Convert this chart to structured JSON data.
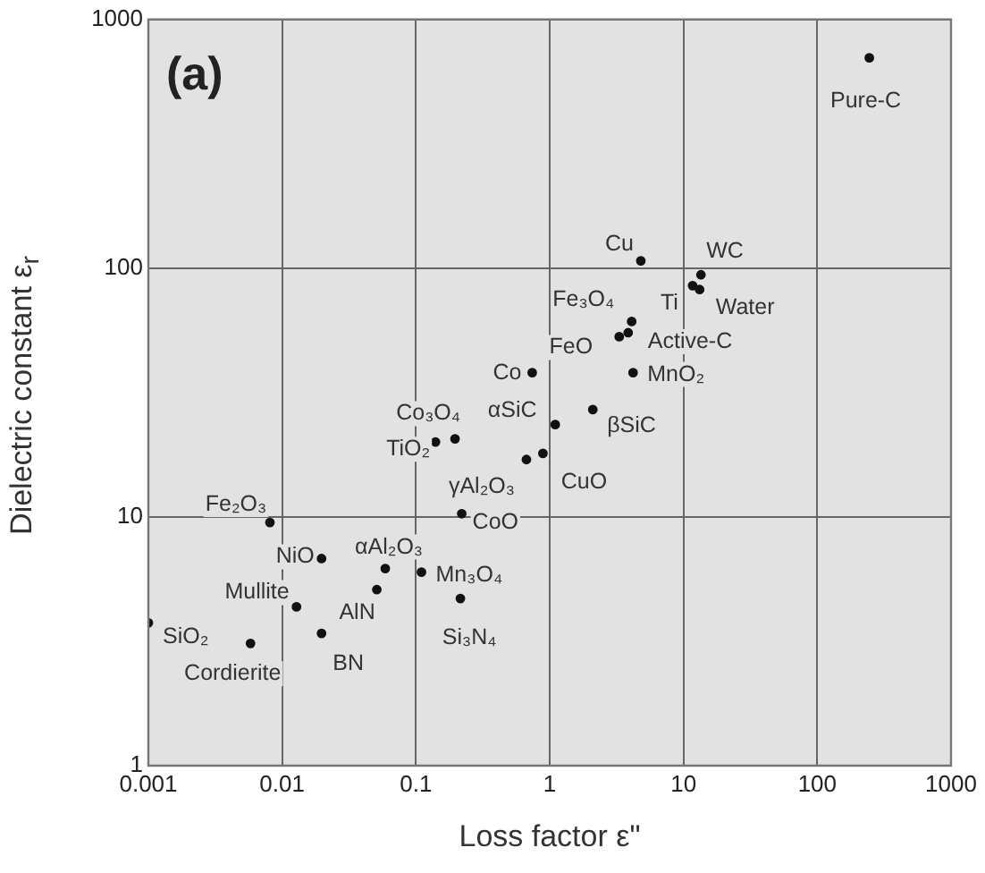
{
  "chart_data": {
    "type": "scatter",
    "xlabel": "Loss factor ε\"",
    "ylabel": "Dielectric constant ε$_{r}$",
    "log": "xy",
    "grid": true,
    "legend": false,
    "marker": "circle",
    "xlim": [
      0.001,
      1000
    ],
    "ylim": [
      1,
      1000
    ],
    "xticks": [
      0.001,
      0.01,
      0.1,
      1,
      10,
      100,
      1000
    ],
    "yticks": [
      1,
      10,
      100,
      1000
    ],
    "series": [
      {
        "color": "#111111",
        "x": [
          245,
          4.8,
          13.5,
          11.7,
          13.2,
          4.1,
          3.86,
          3.31,
          4.2,
          2.1,
          0.74,
          1.1,
          0.89,
          0.67,
          0.14,
          0.196,
          0.22,
          0.0081,
          0.0197,
          0.059,
          0.11,
          0.051,
          0.215,
          0.0128,
          0.001,
          0.0197,
          0.0058
        ],
        "values": [
          700,
          107,
          94,
          85,
          82,
          61,
          55,
          53,
          38,
          27,
          38,
          23.5,
          18,
          17,
          20,
          20.6,
          10.3,
          9.5,
          6.8,
          6.2,
          6.0,
          5.1,
          4.7,
          4.35,
          3.75,
          3.4,
          3.1
        ]
      }
    ],
    "annotations": [
      "(a)",
      {
        "text": "Pure-C",
        "x": 245,
        "y": 700
      },
      {
        "text": "Cu",
        "x": 4.8,
        "y": 107
      },
      {
        "text": "WC",
        "x": 13.5,
        "y": 94
      },
      {
        "text": "Ti",
        "x": 11.7,
        "y": 85
      },
      {
        "text": "Water",
        "x": 13.2,
        "y": 82
      },
      {
        "text": "Fe₃O₄",
        "x": 4.1,
        "y": 61
      },
      {
        "text": "Active-C",
        "x": 3.86,
        "y": 55
      },
      {
        "text": "FeO",
        "x": 3.31,
        "y": 53
      },
      {
        "text": "MnO₂",
        "x": 4.2,
        "y": 38
      },
      {
        "text": "βSiC",
        "x": 2.1,
        "y": 27
      },
      {
        "text": "Co",
        "x": 0.74,
        "y": 38
      },
      {
        "text": "αSiC",
        "x": 1.1,
        "y": 23.5
      },
      {
        "text": "CuO",
        "x": 0.89,
        "y": 18
      },
      {
        "text": "γAl₂O₃",
        "x": 0.67,
        "y": 17
      },
      {
        "text": "TiO₂",
        "x": 0.14,
        "y": 20
      },
      {
        "text": "Co₃O₄",
        "x": 0.196,
        "y": 20.6
      },
      {
        "text": "CoO",
        "x": 0.22,
        "y": 10.3
      },
      {
        "text": "Fe₂O₃",
        "x": 0.0081,
        "y": 9.5
      },
      {
        "text": "NiO",
        "x": 0.0197,
        "y": 6.8
      },
      {
        "text": "αAl₂O₃",
        "x": 0.059,
        "y": 6.2
      },
      {
        "text": "Mn₃O₄",
        "x": 0.11,
        "y": 6.0
      },
      {
        "text": "AlN",
        "x": 0.051,
        "y": 5.1
      },
      {
        "text": "Si₃N₄",
        "x": 0.215,
        "y": 4.7
      },
      {
        "text": "Mullite",
        "x": 0.0128,
        "y": 4.35
      },
      {
        "text": "SiO₂",
        "x": 0.001,
        "y": 3.75
      },
      {
        "text": "BN",
        "x": 0.0197,
        "y": 3.4
      },
      {
        "text": "Cordierite",
        "x": 0.0058,
        "y": 3.1
      }
    ]
  }
}
